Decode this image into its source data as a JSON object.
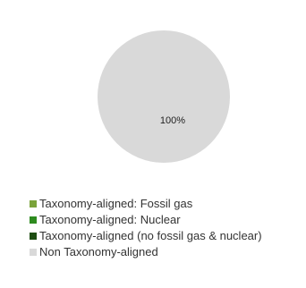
{
  "chart_data": {
    "type": "pie",
    "slices": [
      {
        "label": "Taxonomy-aligned: Fossil gas",
        "value": 0,
        "color": "#7aa33a"
      },
      {
        "label": "Taxonomy-aligned: Nuclear",
        "value": 0,
        "color": "#2e8b1f"
      },
      {
        "label": "Taxonomy-aligned (no fossil gas & nuclear)",
        "value": 0,
        "color": "#1e4d12"
      },
      {
        "label": "Non Taxonomy-aligned",
        "value": 100,
        "color": "#d9d9d9"
      }
    ],
    "data_labels": [
      "100%"
    ],
    "legend_position": "bottom-left"
  }
}
